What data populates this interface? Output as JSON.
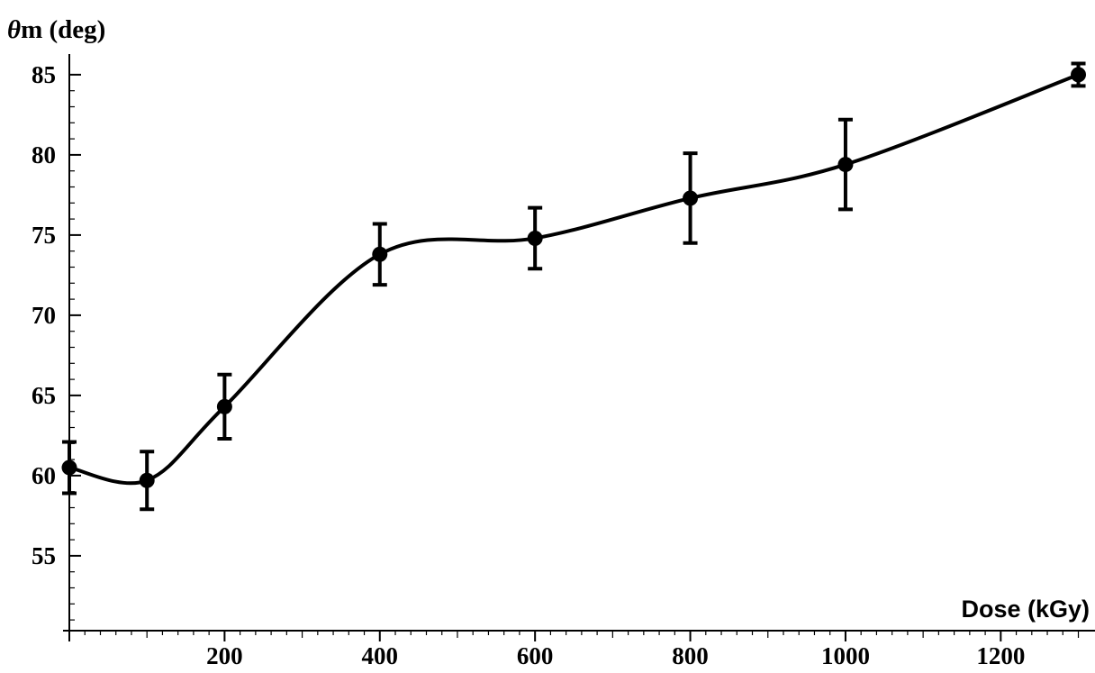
{
  "chart_data": {
    "type": "line",
    "xlabel": "Dose (kGy)",
    "ylabel": "θm (deg)",
    "ylabel_symbol": "θ",
    "ylabel_rest": "m (deg)",
    "xlim": [
      0,
      1340
    ],
    "ylim": [
      50.5,
      85.5
    ],
    "x_ticks": [
      200,
      400,
      600,
      800,
      1000,
      1200
    ],
    "x_tick_labels": [
      "200",
      "400",
      "600",
      "800",
      "1000",
      "1200"
    ],
    "x_minor_step": 20,
    "y_ticks": [
      55,
      60,
      65,
      70,
      75,
      80,
      85
    ],
    "y_tick_labels": [
      "55",
      "60",
      "65",
      "70",
      "75",
      "80",
      "85"
    ],
    "y_minor_step": 1,
    "grid": false,
    "series": [
      {
        "points": [
          {
            "x": 0,
            "y": 60.5,
            "err": 1.6
          },
          {
            "x": 100,
            "y": 59.7,
            "err": 1.8
          },
          {
            "x": 200,
            "y": 64.3,
            "err": 2.0
          },
          {
            "x": 400,
            "y": 73.8,
            "err": 1.9
          },
          {
            "x": 600,
            "y": 74.8,
            "err": 1.9
          },
          {
            "x": 800,
            "y": 77.3,
            "err": 2.8
          },
          {
            "x": 1000,
            "y": 79.4,
            "err": 2.8
          },
          {
            "x": 1300,
            "y": 85.0,
            "err": 0.7
          }
        ]
      }
    ]
  }
}
